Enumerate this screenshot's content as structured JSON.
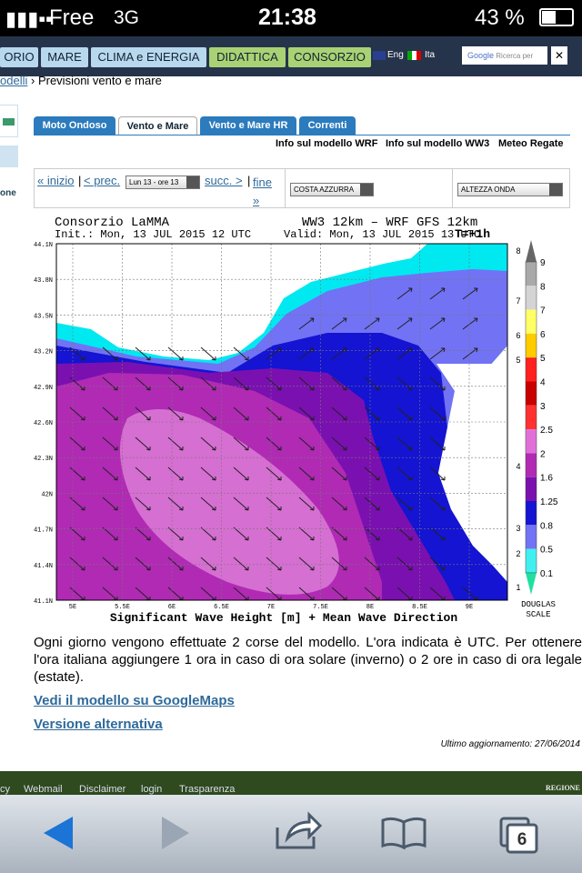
{
  "status_bar": {
    "carrier": "Free",
    "network": "3G",
    "time": "21:38",
    "battery": "43 %"
  },
  "nav": {
    "tabs": [
      "ORIO",
      "MARE",
      "CLIMA e ENERGIA",
      "DIDATTICA",
      "CONSORZIO"
    ],
    "languages": [
      "Eng",
      "Ita"
    ],
    "search_logo": "Google",
    "search_placeholder": "Ricerca per"
  },
  "breadcrumb": {
    "link": "odelli",
    "separator": "›",
    "current": "Previsioni vento e mare"
  },
  "sidebar": {
    "label": "one"
  },
  "tabs": [
    "Moto Ondoso",
    "Vento e Mare",
    "Vento e Mare HR",
    "Correnti"
  ],
  "info_links": [
    "Info sul modello WRF",
    "Info sul modello WW3",
    "Meteo Regate"
  ],
  "pager": {
    "first": "« inizio",
    "prev": "< prec.",
    "selected": "Lun 13 - ore 13",
    "next": "succ. >",
    "last": "fine »",
    "separator": "|",
    "region": "COSTA AZZURRA",
    "variable": "ALTEZZA ONDA"
  },
  "map": {
    "header_left": "Consorzio LaMMA",
    "header_right": "WW3 12km – WRF GFS 12km",
    "init": "Init.: Mon, 13 JUL 2015  12 UTC",
    "valid": "Valid: Mon, 13 JUL 2015  13 UTC",
    "step": "T=+1h",
    "lat_labels": [
      "44.1N",
      "43.8N",
      "43.5N",
      "43.2N",
      "42.9N",
      "42.6N",
      "42.3N",
      "42N",
      "41.7N",
      "41.4N",
      "41.1N"
    ],
    "lon_labels": [
      "5E",
      "5.5E",
      "6E",
      "6.5E",
      "7E",
      "7.5E",
      "8E",
      "8.5E",
      "9E"
    ],
    "caption": "Significant Wave Height [m] + Mean Wave Direction",
    "scale_values": [
      "9",
      "8",
      "7",
      "6",
      "5",
      "4",
      "3",
      "2.5",
      "2",
      "1.6",
      "1.25",
      "0.8",
      "0.5",
      "0.1"
    ],
    "douglas_values": [
      "8",
      "7",
      "6",
      "5",
      "4",
      "3",
      "2",
      "1"
    ],
    "scale_title": [
      "DOUGLAS",
      "SCALE"
    ]
  },
  "description": "Ogni giorno vengono effettuate 2 corse del modello. L'ora indicata è UTC. Per ottenere l'ora italiana aggiungere 1 ora in caso di ora solare (inverno) o 2 ore in caso di ora legale (estate).",
  "links": [
    "Vedi il modello su GoogleMaps",
    "Versione alternativa"
  ],
  "updated": "Ultimo aggiornamento: 27/06/2014",
  "footer": {
    "links": [
      "cy",
      "Webmail",
      "Disclaimer",
      "login",
      "Trasparenza"
    ],
    "brand": "REGIONE"
  },
  "toolbar": {
    "tab_count": "6"
  }
}
